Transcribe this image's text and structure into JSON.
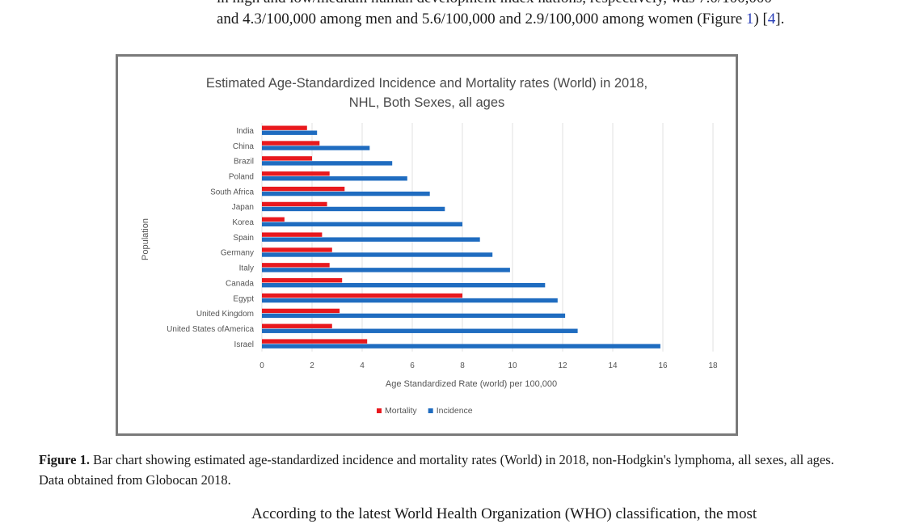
{
  "text_above": {
    "line1_partial": "in high and low/medium human development index nations, respectively, was 7.0/100,000",
    "line2_text": "and 4.3/100,000 among men and 5.6/100,000 and 2.9/100,000 among women (Figure ",
    "line2_fig_ref": "1",
    "line2_mid": ") [",
    "line2_cite": "4",
    "line2_end": "]."
  },
  "caption": {
    "label": "Figure 1.",
    "text": "Bar chart showing estimated age-standardized incidence and mortality rates (World) in 2018, non-Hodgkin's lymphoma, all sexes, all ages. Data obtained from Globocan 2018."
  },
  "text_below": {
    "partial": "According to the latest World Health Organization (WHO) classification, the most"
  },
  "chart_data": {
    "type": "bar",
    "orientation": "horizontal",
    "title_line1": "Estimated Age-Standardized Incidence and Mortality rates (World) in 2018,",
    "title_line2": "NHL, Both Sexes, all ages",
    "ylabel": "Population",
    "xlabel": "Age Standardized Rate (world) per 100,000",
    "xlim": [
      0,
      18
    ],
    "xticks": [
      0,
      2,
      4,
      6,
      8,
      10,
      12,
      14,
      16,
      18
    ],
    "grid": true,
    "legend_position": "bottom",
    "categories": [
      "India",
      "China",
      "Brazil",
      "Poland",
      "South Africa",
      "Japan",
      "Korea",
      "Spain",
      "Germany",
      "Italy",
      "Canada",
      "Egypt",
      "United Kingdom",
      "United States ofAmerica",
      "Israel"
    ],
    "series": [
      {
        "name": "Mortality",
        "color": "#e8191e",
        "values": [
          1.8,
          2.3,
          2.0,
          2.7,
          3.3,
          2.6,
          0.9,
          2.4,
          2.8,
          2.7,
          3.2,
          8.0,
          3.1,
          2.8,
          4.2
        ]
      },
      {
        "name": "Incidence",
        "color": "#1f6cc0",
        "values": [
          2.2,
          4.3,
          5.2,
          5.8,
          6.7,
          7.3,
          8.0,
          8.7,
          9.2,
          9.9,
          11.3,
          11.8,
          12.1,
          12.6,
          15.9
        ]
      }
    ]
  }
}
